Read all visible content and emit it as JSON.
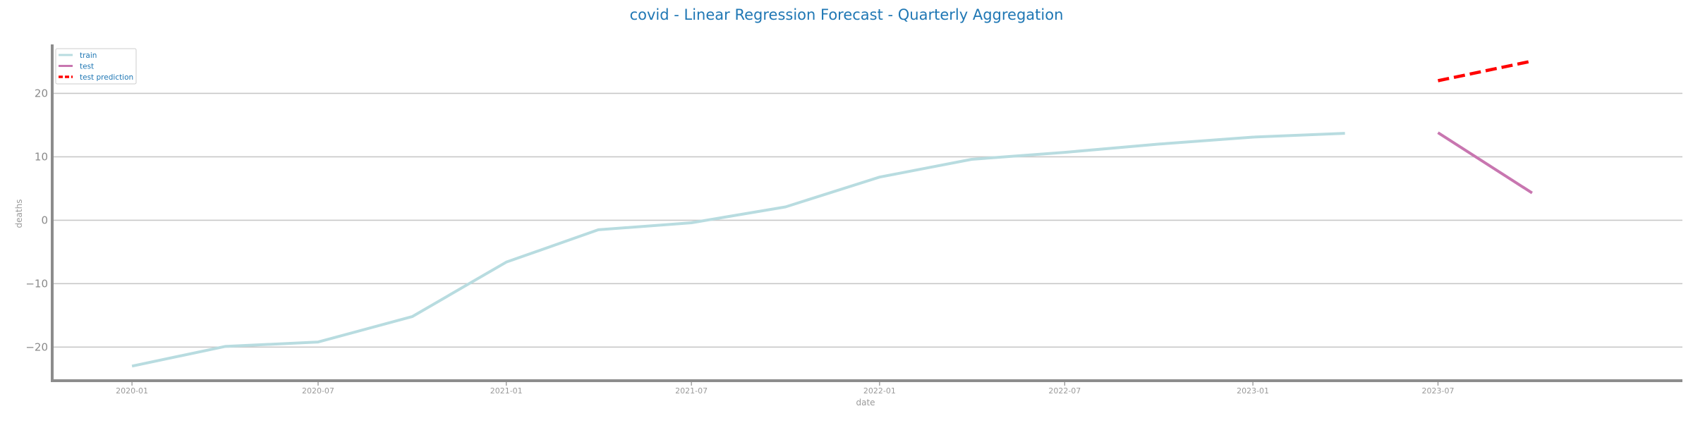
{
  "chart_data": {
    "type": "line",
    "title": "covid - Linear Regression Forecast - Quarterly Aggregation",
    "xlabel": "date",
    "ylabel": "deaths",
    "x_ticks": [
      "2020-01",
      "2020-07",
      "2021-01",
      "2021-07",
      "2022-01",
      "2022-07",
      "2023-01",
      "2023-07"
    ],
    "y_ticks": [
      -20,
      -10,
      0,
      10,
      20
    ],
    "xlim": [
      "2019-10-15",
      "2024-02-25"
    ],
    "ylim": [
      -25.3,
      27.5
    ],
    "grid": "horizontal",
    "legend_position": "top-left",
    "colors": {
      "train": "#b8dce0",
      "test": "#c876b0",
      "test_prediction": "#ff0000",
      "title": "#1f77b4",
      "axis": "#8c8c8c",
      "grid": "#c8c8c8"
    },
    "series": [
      {
        "name": "train",
        "style": "solid",
        "x": [
          "2020-01-01",
          "2020-04-01",
          "2020-07-01",
          "2020-10-01",
          "2021-01-01",
          "2021-04-01",
          "2021-07-01",
          "2021-10-01",
          "2022-01-01",
          "2022-04-01",
          "2022-07-01",
          "2022-10-01",
          "2023-01-01",
          "2023-04-01"
        ],
        "values": [
          -23.0,
          -19.9,
          -19.2,
          -15.2,
          -6.6,
          -1.5,
          -0.4,
          2.1,
          6.8,
          9.6,
          10.7,
          12.0,
          13.1,
          13.7
        ]
      },
      {
        "name": "test",
        "style": "solid",
        "x": [
          "2023-07-01",
          "2023-10-01"
        ],
        "values": [
          13.8,
          4.3
        ]
      },
      {
        "name": "test prediction",
        "style": "dashed",
        "x": [
          "2023-07-01",
          "2023-10-01"
        ],
        "values": [
          22.0,
          25.1
        ]
      }
    ]
  }
}
